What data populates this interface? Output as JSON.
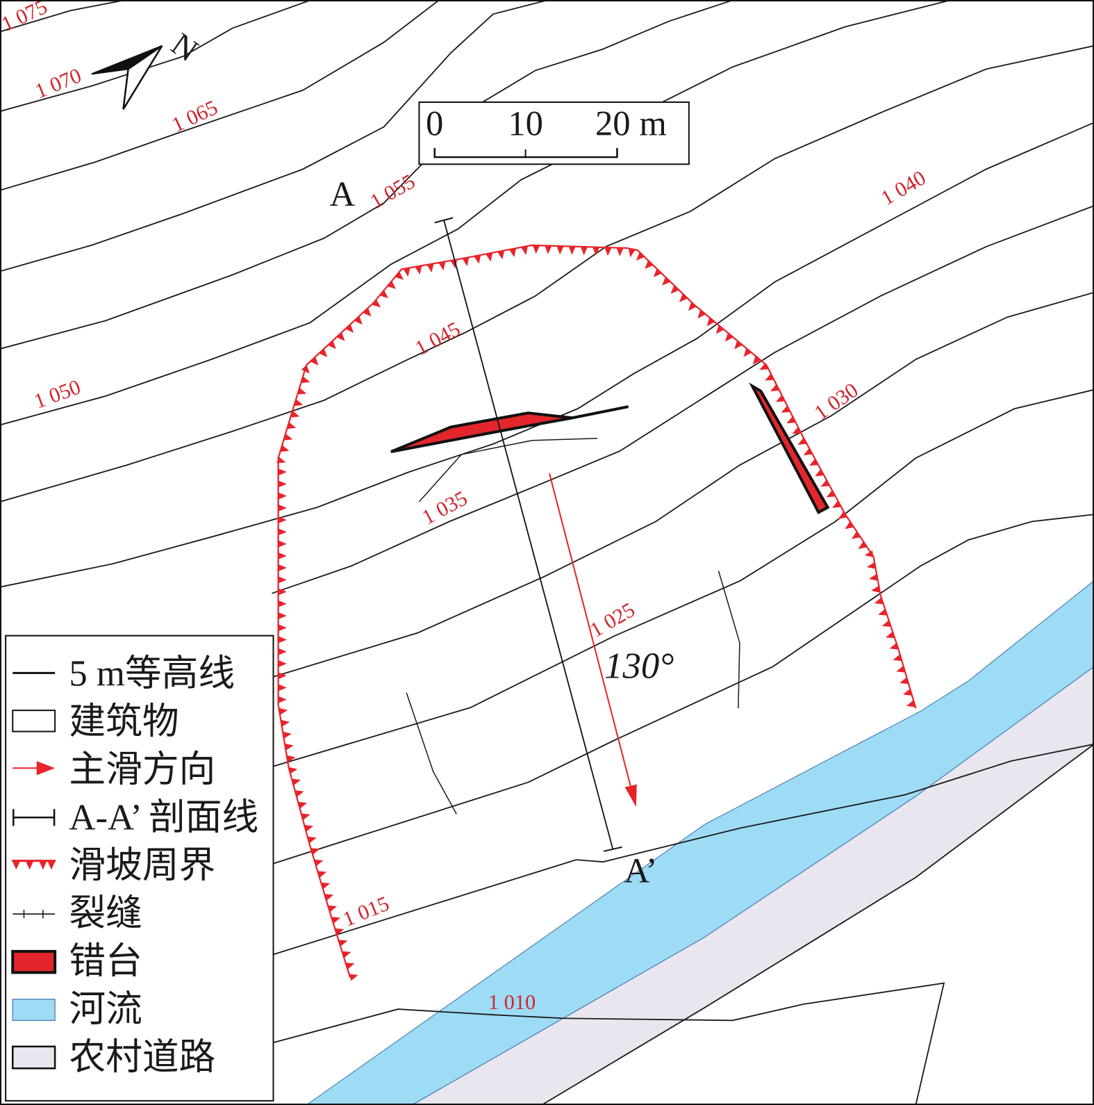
{
  "map": {
    "north_label": "N",
    "scale_bar": {
      "labels": [
        "0",
        "10",
        "20 m"
      ]
    },
    "profile": {
      "start_label": "A",
      "end_label": "A’"
    },
    "slide_direction_label": "130°",
    "contour_labels": [
      "1 075",
      "1 070",
      "1 065",
      "1 055",
      "1 050",
      "1 045",
      "1 040",
      "1 035",
      "1 030",
      "1 025",
      "1 015",
      "1 010"
    ],
    "colors": {
      "contour": "#1a1a1a",
      "landslide_boundary": "#e8232a",
      "scarp_fill": "#e3262c",
      "river": "#9edcf5",
      "road": "#e9e6ef",
      "label_red": "#d2232a"
    }
  },
  "legend": {
    "items": [
      {
        "label": "5 m等高线",
        "symbol": "black-line"
      },
      {
        "label": "建筑物",
        "symbol": "white-box"
      },
      {
        "label": "主滑方向",
        "symbol": "red-arrow"
      },
      {
        "label": "A-A’ 剖面线",
        "symbol": "profile-line"
      },
      {
        "label": "滑坡周界",
        "symbol": "red-triangle-line"
      },
      {
        "label": "裂缝",
        "symbol": "crack-line"
      },
      {
        "label": "错台",
        "symbol": "red-box"
      },
      {
        "label": "河流",
        "symbol": "blue-box"
      },
      {
        "label": "农村道路",
        "symbol": "lavender-box"
      }
    ]
  }
}
